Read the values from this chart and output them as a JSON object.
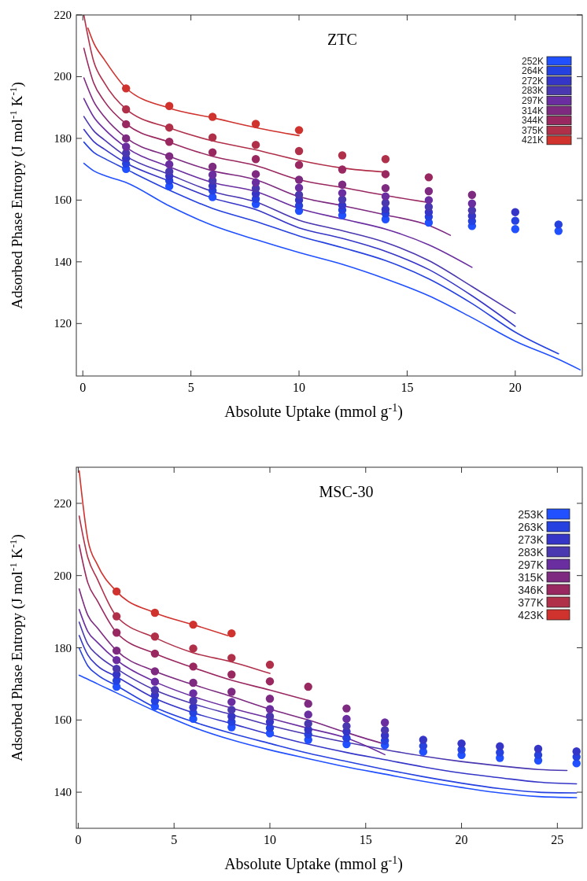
{
  "chart_data": [
    {
      "type": "line",
      "title": "ZTC",
      "xlabel": "Absolute Uptake (mmol g$^{-1}$)",
      "ylabel": "Adsorbed Phase Entropy (J mol$^{-1}$ K$^{-1}$)",
      "xlim": [
        -0.3,
        23.1
      ],
      "ylim": [
        103,
        220
      ],
      "xticks": [
        0,
        5,
        10,
        15,
        20
      ],
      "yticks": [
        120,
        140,
        160,
        180,
        200,
        220
      ],
      "legend": "top right",
      "series": [
        {
          "type": "line",
          "name": "252K",
          "color": "#2050ff",
          "x": [
            0.05,
            0.5,
            1,
            2,
            4,
            6,
            8,
            10,
            12,
            14,
            16,
            18,
            20,
            22,
            23
          ],
          "values": [
            171.9,
            169.5,
            168,
            165.7,
            158.1,
            151.8,
            147.2,
            143,
            139.2,
            134.5,
            129,
            121.9,
            114.3,
            108.4,
            105
          ]
        },
        {
          "type": "line",
          "name": "264K",
          "color": "#2541e0",
          "x": [
            0.05,
            0.5,
            1,
            2,
            4,
            6,
            8,
            10,
            12,
            14,
            16,
            18,
            20,
            22
          ],
          "values": [
            178.8,
            175.5,
            173.5,
            170,
            163.2,
            157.3,
            153.1,
            148.4,
            144.6,
            140.4,
            134.5,
            126.5,
            117.2,
            110.2
          ]
        },
        {
          "type": "line",
          "name": "272K",
          "color": "#3535c8",
          "x": [
            0.05,
            0.5,
            1,
            2,
            4,
            6,
            8,
            10,
            12,
            14,
            16,
            18,
            20
          ],
          "values": [
            182.9,
            179,
            176.5,
            172,
            166.2,
            160.7,
            156.9,
            151,
            147.6,
            143.4,
            137.5,
            129,
            119.1
          ]
        },
        {
          "type": "line",
          "name": "283K",
          "color": "#4a38b0",
          "x": [
            0.05,
            0.5,
            1,
            2,
            4,
            6,
            8,
            10,
            12,
            14,
            16,
            18,
            20
          ],
          "values": [
            187.1,
            182.5,
            179.5,
            174.2,
            168.3,
            162.8,
            159.4,
            153.5,
            150.1,
            146.3,
            140.4,
            132,
            123.3
          ]
        },
        {
          "type": "line",
          "name": "297K",
          "color": "#6a2ea0",
          "x": [
            0.05,
            0.5,
            1,
            2,
            4,
            6,
            8,
            10,
            12,
            14,
            16,
            18
          ],
          "values": [
            192.9,
            187,
            183,
            177.1,
            170.8,
            165.7,
            162.8,
            157.3,
            153.9,
            150.6,
            145.5,
            138.2
          ]
        },
        {
          "type": "line",
          "name": "314K",
          "color": "#7d2a80",
          "x": [
            0.05,
            0.5,
            1,
            2,
            4,
            6,
            8,
            10,
            12,
            14,
            16,
            17
          ],
          "values": [
            199.6,
            192,
            187,
            180.2,
            174.2,
            169.5,
            166.6,
            161.1,
            158.2,
            155.2,
            151.8,
            148.6
          ]
        },
        {
          "type": "line",
          "name": "344K",
          "color": "#9a2860",
          "x": [
            0.05,
            0.5,
            1,
            2,
            4,
            6,
            8,
            10,
            12,
            14,
            16
          ],
          "values": [
            209.2,
            198,
            192,
            184.7,
            178.8,
            174.2,
            171.2,
            166.6,
            164.1,
            161.5,
            159.2
          ]
        },
        {
          "type": "line",
          "name": "375K",
          "color": "#b0304a",
          "x": [
            0.05,
            0.5,
            1,
            2,
            4,
            6,
            8,
            10,
            12,
            14
          ],
          "values": [
            219.9,
            205,
            198,
            189.5,
            183.4,
            179.2,
            176.3,
            172.9,
            170.4,
            169.1
          ]
        },
        {
          "type": "line",
          "name": "421K",
          "color": "#d0322e",
          "x": [
            0.24,
            0.5,
            1,
            2,
            4,
            6,
            8,
            10
          ],
          "values": [
            215.7,
            211,
            205.5,
            196.3,
            189.8,
            186.7,
            183.5,
            180.9
          ]
        },
        {
          "type": "scatter",
          "marker": "circle",
          "color": "#2050ff",
          "x": [
            2,
            4,
            6,
            8,
            10,
            12,
            14,
            16,
            18,
            20,
            22
          ],
          "values": [
            170.1,
            164.5,
            161,
            158.7,
            156.5,
            155.1,
            153.8,
            152.7,
            151.6,
            150.6,
            150
          ]
        },
        {
          "type": "scatter",
          "marker": "circle",
          "color": "#2541e0",
          "x": [
            2,
            4,
            6,
            8,
            10,
            12,
            14,
            16,
            18,
            20,
            22
          ],
          "values": [
            171.8,
            166.3,
            163.1,
            160.4,
            158.2,
            156.8,
            155.7,
            154.6,
            153.2,
            153.3,
            152.1
          ]
        },
        {
          "type": "scatter",
          "marker": "circle",
          "color": "#3535c8",
          "x": [
            2,
            4,
            6,
            8,
            10,
            12,
            14,
            16,
            18,
            20
          ],
          "values": [
            173.5,
            167.8,
            164.6,
            162.1,
            160,
            158.3,
            157,
            156.1,
            154.9,
            156.1
          ]
        },
        {
          "type": "scatter",
          "marker": "circle",
          "color": "#4a38b0",
          "x": [
            2,
            4,
            6,
            8,
            10,
            12,
            14,
            16,
            18
          ],
          "values": [
            175.2,
            169.3,
            166.3,
            163.8,
            161.7,
            160.2,
            159.1,
            157.8,
            156.7
          ]
        },
        {
          "type": "scatter",
          "marker": "circle",
          "color": "#6a2ea0",
          "x": [
            2,
            4,
            6,
            8,
            10,
            12,
            14,
            16,
            18
          ],
          "values": [
            177.3,
            171.6,
            168.2,
            165.7,
            164,
            162.3,
            161.2,
            160,
            158.9
          ]
        },
        {
          "type": "scatter",
          "marker": "circle",
          "color": "#7d2a80",
          "x": [
            2,
            4,
            6,
            8,
            10,
            12,
            14,
            16,
            18
          ],
          "values": [
            180,
            174.2,
            170.8,
            168.4,
            166.6,
            165,
            163.9,
            162.9,
            161.7
          ]
        },
        {
          "type": "scatter",
          "marker": "circle",
          "color": "#9a2860",
          "x": [
            2,
            4,
            6,
            8,
            10,
            12,
            14,
            16
          ],
          "values": [
            184.6,
            178.9,
            175.5,
            173.3,
            171.4,
            169.9,
            168.4,
            167.4
          ]
        },
        {
          "type": "scatter",
          "marker": "circle",
          "color": "#b0304a",
          "x": [
            2,
            4,
            6,
            8,
            10,
            12,
            14
          ],
          "values": [
            189.4,
            183.5,
            180.3,
            177.9,
            175.9,
            174.5,
            173.3
          ]
        },
        {
          "type": "scatter",
          "marker": "circle",
          "color": "#d0322e",
          "x": [
            2,
            4,
            6,
            8,
            10
          ],
          "values": [
            196.2,
            190.5,
            187,
            184.7,
            182.7
          ]
        }
      ]
    },
    {
      "type": "line",
      "title": "MSC-30",
      "xlabel": "Absolute Uptake (mmol g$^{-1}$)",
      "ylabel": "Adsorbed Phase Entropy (J mol$^{-1}$ K$^{-1}$)",
      "xlim": [
        -0.1,
        26.3
      ],
      "ylim": [
        130,
        230
      ],
      "xticks": [
        0,
        5,
        10,
        15,
        20,
        25
      ],
      "yticks": [
        140,
        160,
        180,
        200,
        220
      ],
      "legend": "top right",
      "series": [
        {
          "type": "line",
          "name": "253K",
          "color": "#2050ff",
          "x": [
            0.05,
            0.5,
            1,
            2,
            4,
            6,
            8,
            10,
            12,
            14,
            16,
            18,
            20,
            22,
            24,
            26
          ],
          "values": [
            172.4,
            171.3,
            170,
            167.5,
            162.5,
            158,
            154.5,
            151.7,
            149.3,
            147,
            145,
            143,
            141.3,
            139.8,
            138.8,
            138.5
          ]
        },
        {
          "type": "line",
          "name": "263K",
          "color": "#2541e0",
          "x": [
            0.05,
            0.5,
            1,
            2,
            4,
            6,
            8,
            10,
            12,
            14,
            16,
            18,
            20,
            22,
            24,
            26
          ],
          "values": [
            179.9,
            175,
            172.5,
            169.5,
            163.5,
            159.5,
            156.3,
            153.5,
            150.8,
            148.5,
            146.3,
            144.3,
            142.5,
            141,
            140,
            139.8
          ]
        },
        {
          "type": "line",
          "name": "273K",
          "color": "#3535c8",
          "x": [
            0.05,
            0.5,
            1,
            2,
            4,
            6,
            8,
            10,
            12,
            14,
            16,
            18,
            20,
            22,
            24,
            26
          ],
          "values": [
            183.4,
            178,
            175,
            172,
            166,
            162,
            159,
            156,
            153.3,
            151,
            149,
            147,
            145.3,
            144,
            142.8,
            142.3
          ]
        },
        {
          "type": "line",
          "name": "283K",
          "color": "#4a38b0",
          "x": [
            0.05,
            0.5,
            1,
            2,
            4,
            6,
            8,
            10,
            12,
            14,
            16,
            18,
            20,
            22,
            24,
            25.5
          ],
          "values": [
            187.1,
            181,
            178,
            174.2,
            168.3,
            164.5,
            161.5,
            158.5,
            156,
            153.8,
            151.8,
            150,
            148.5,
            147.3,
            146.3,
            146
          ]
        },
        {
          "type": "line",
          "name": "297K",
          "color": "#6a2ea0",
          "x": [
            0.05,
            0.5,
            1,
            2,
            4,
            6,
            8,
            10,
            12,
            14,
            16
          ],
          "values": [
            190.6,
            184.5,
            181.5,
            176.6,
            170.6,
            166.5,
            163.3,
            160.5,
            157.7,
            155,
            150.4
          ]
        },
        {
          "type": "line",
          "name": "315K",
          "color": "#7d2a80",
          "x": [
            0.05,
            0.5,
            1,
            2,
            4,
            6,
            8,
            10,
            12,
            14,
            16
          ],
          "values": [
            196.3,
            189,
            185.5,
            179.2,
            173.5,
            169.8,
            166.5,
            163,
            160,
            156.5,
            153.3
          ]
        },
        {
          "type": "line",
          "name": "346K",
          "color": "#9a2860",
          "x": [
            0.05,
            0.5,
            1,
            2,
            4,
            6,
            8,
            10,
            12
          ],
          "values": [
            208.5,
            198,
            193,
            184.2,
            178.4,
            174.5,
            171,
            168.3,
            165.4
          ]
        },
        {
          "type": "line",
          "name": "377K",
          "color": "#b0304a",
          "x": [
            0.05,
            0.5,
            1,
            2,
            4,
            6,
            8,
            10
          ],
          "values": [
            216.5,
            205,
            199,
            188.7,
            182.8,
            178.6,
            176.1,
            172.9
          ]
        },
        {
          "type": "line",
          "name": "423K",
          "color": "#d0322e",
          "x": [
            0.05,
            0.5,
            1,
            2,
            4,
            6,
            7.8
          ],
          "values": [
            229,
            210,
            203,
            195.6,
            189.7,
            186.4,
            183.4
          ]
        },
        {
          "type": "scatter",
          "marker": "circle",
          "color": "#2050ff",
          "x": [
            2,
            4,
            6,
            8,
            10,
            12,
            14,
            16,
            18,
            20,
            22,
            24,
            26
          ],
          "values": [
            169.2,
            163.8,
            160.3,
            158,
            156.3,
            154.5,
            153.3,
            153,
            151.2,
            150.3,
            149.5,
            148.8,
            148
          ]
        },
        {
          "type": "scatter",
          "marker": "circle",
          "color": "#2541e0",
          "x": [
            2,
            4,
            6,
            8,
            10,
            12,
            14,
            16,
            18,
            20,
            22,
            24,
            26
          ],
          "values": [
            170.9,
            165.3,
            162,
            159.5,
            157.8,
            156,
            155,
            154.3,
            152.8,
            151.8,
            151,
            150.3,
            149.8
          ]
        },
        {
          "type": "scatter",
          "marker": "circle",
          "color": "#3535c8",
          "x": [
            2,
            4,
            6,
            8,
            10,
            12,
            14,
            16,
            18,
            20,
            22,
            24,
            26
          ],
          "values": [
            172.6,
            166.9,
            163.5,
            161,
            159.5,
            157.3,
            156.8,
            155.7,
            154.5,
            153.5,
            152.7,
            152,
            151.3
          ]
        },
        {
          "type": "scatter",
          "marker": "circle",
          "color": "#4a38b0",
          "x": [
            2,
            4,
            6,
            8,
            10,
            12,
            14,
            16
          ],
          "values": [
            174.2,
            168.3,
            165.3,
            162.8,
            161,
            159,
            158.3,
            157.2
          ]
        },
        {
          "type": "scatter",
          "marker": "circle",
          "color": "#6a2ea0",
          "x": [
            2,
            4,
            6,
            8,
            10,
            12,
            14,
            16
          ],
          "values": [
            176.6,
            170.6,
            167.4,
            165,
            163,
            161.5,
            160.3,
            159.3
          ]
        },
        {
          "type": "scatter",
          "marker": "circle",
          "color": "#7d2a80",
          "x": [
            2,
            4,
            6,
            8,
            10,
            12,
            14
          ],
          "values": [
            179.2,
            173.5,
            170.3,
            167.8,
            165.9,
            164.5,
            163.2
          ]
        },
        {
          "type": "scatter",
          "marker": "circle",
          "color": "#9a2860",
          "x": [
            2,
            4,
            6,
            8,
            10,
            12
          ],
          "values": [
            184.2,
            178.4,
            174.8,
            172.6,
            170.7,
            169.2
          ]
        },
        {
          "type": "scatter",
          "marker": "circle",
          "color": "#b0304a",
          "x": [
            2,
            4,
            6,
            8,
            10
          ],
          "values": [
            188.7,
            183.1,
            179.8,
            177.2,
            175.3
          ]
        },
        {
          "type": "scatter",
          "marker": "circle",
          "color": "#d0322e",
          "x": [
            2,
            4,
            6,
            8
          ],
          "values": [
            195.6,
            189.7,
            186.4,
            184
          ]
        }
      ]
    }
  ]
}
